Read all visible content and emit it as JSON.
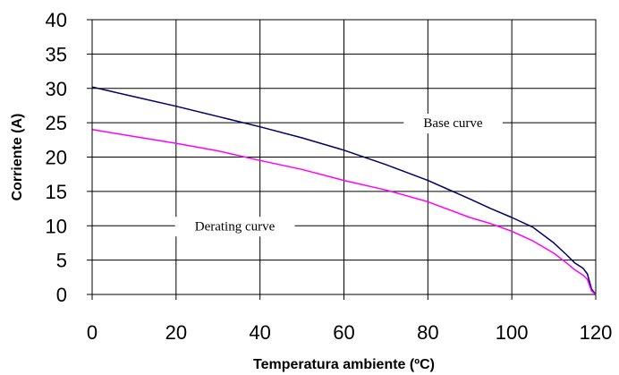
{
  "chart_data": {
    "type": "line",
    "xlabel": "Temperatura ambiente (ºC)",
    "ylabel": "Corriente (A)",
    "xlim": [
      0,
      120
    ],
    "ylim": [
      0,
      40
    ],
    "x_ticks": [
      0,
      20,
      40,
      60,
      80,
      100,
      120
    ],
    "y_ticks": [
      0,
      5,
      10,
      15,
      20,
      25,
      30,
      35,
      40
    ],
    "grid": true,
    "series": [
      {
        "color": "#000066",
        "x": [
          0,
          10,
          20,
          30,
          40,
          50,
          60,
          70,
          80,
          90,
          95,
          100,
          105,
          110,
          113,
          115,
          117,
          118,
          119,
          120
        ],
        "y": [
          30.2,
          28.8,
          27.4,
          25.9,
          24.4,
          22.8,
          21.0,
          18.9,
          16.6,
          13.9,
          12.5,
          11.2,
          9.8,
          7.5,
          5.8,
          4.6,
          3.8,
          3.0,
          0.8,
          0
        ]
      },
      {
        "color": "#ff00ff",
        "x": [
          0,
          10,
          20,
          30,
          40,
          50,
          60,
          70,
          80,
          90,
          95,
          100,
          105,
          110,
          113,
          115,
          117,
          118,
          119,
          120
        ],
        "y": [
          24.0,
          23.0,
          22.0,
          20.9,
          19.5,
          18.2,
          16.6,
          15.2,
          13.5,
          11.2,
          10.3,
          9.2,
          7.8,
          6.0,
          4.6,
          3.6,
          2.8,
          2.2,
          0.5,
          0
        ]
      }
    ],
    "annotations": [
      {
        "text": "Base curve",
        "x": 86,
        "y": 25
      },
      {
        "text": "Derating curve",
        "x": 34,
        "y": 10
      }
    ]
  }
}
